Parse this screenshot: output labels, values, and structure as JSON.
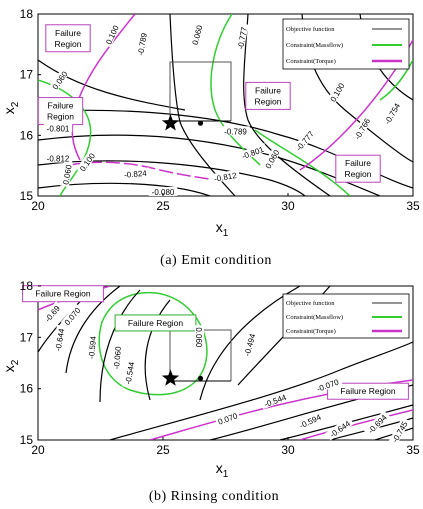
{
  "figure": {
    "caption_a": "(a)  Emit condition",
    "caption_b": "(b)  Rinsing condition"
  },
  "chart_data": [
    {
      "type": "contour",
      "title": "",
      "xlabel": "x",
      "xlabel_sub": "1",
      "ylabel": "x",
      "ylabel_sub": "2",
      "xlim": [
        20,
        35
      ],
      "ylim": [
        15,
        18
      ],
      "xticks": [
        "20",
        "25",
        "30",
        "35"
      ],
      "yticks": [
        "15",
        "16",
        "17",
        "18"
      ],
      "legend": {
        "placement": "top-right",
        "entries": [
          {
            "label": "Objective function",
            "color": "#555555"
          },
          {
            "label": "Constraint(Massflow)",
            "color": "#33cc33"
          },
          {
            "label": "Constraint(Torque)",
            "color": "#cc33cc"
          }
        ]
      },
      "regions": [
        {
          "label": "Failure\nRegion",
          "x": 21.2,
          "y": 17.6
        },
        {
          "label": "Failure\nRegion",
          "x": 20.9,
          "y": 16.4
        },
        {
          "label": "Failure\nRegion",
          "x": 29.2,
          "y": 16.65
        },
        {
          "label": "Failure\nRegion",
          "x": 32.8,
          "y": 15.45
        }
      ],
      "contour_labels": [
        {
          "text": "-0.789",
          "x": 24.2,
          "y": 17.5,
          "rot": -80
        },
        {
          "text": "-0.777",
          "x": 28.2,
          "y": 17.6,
          "rot": -80
        },
        {
          "text": "0.100",
          "x": 23.0,
          "y": 17.65,
          "rot": -65
        },
        {
          "text": "0.060",
          "x": 26.4,
          "y": 17.65,
          "rot": -75
        },
        {
          "text": "0.060",
          "x": 20.9,
          "y": 16.9,
          "rot": -55
        },
        {
          "text": "0.100",
          "x": 32.0,
          "y": 16.7,
          "rot": -60
        },
        {
          "text": "-0.754",
          "x": 34.2,
          "y": 16.35,
          "rot": -60
        },
        {
          "text": "-0.766",
          "x": 33.0,
          "y": 16.1,
          "rot": -60
        },
        {
          "text": "-0.777",
          "x": 30.7,
          "y": 15.9,
          "rot": -50
        },
        {
          "text": "-0.789",
          "x": 27.9,
          "y": 16.05,
          "rot": 0
        },
        {
          "text": "-0.801",
          "x": 28.6,
          "y": 15.7,
          "rot": -20
        },
        {
          "text": "0.060",
          "x": 29.4,
          "y": 15.6,
          "rot": -60
        },
        {
          "text": "-0.812",
          "x": 27.5,
          "y": 15.3,
          "rot": -10
        },
        {
          "text": "-0.824",
          "x": 23.9,
          "y": 15.35,
          "rot": -5
        },
        {
          "text": "-0.080",
          "x": 25.0,
          "y": 15.05,
          "rot": 0
        },
        {
          "text": "-0.801",
          "x": 20.8,
          "y": 16.1,
          "rot": 0
        },
        {
          "text": "-0.812",
          "x": 20.8,
          "y": 15.6,
          "rot": 0
        },
        {
          "text": "0.060",
          "x": 21.2,
          "y": 15.35,
          "rot": -80
        },
        {
          "text": "0.100",
          "x": 22.0,
          "y": 15.55,
          "rot": -55
        }
      ],
      "markers": [
        {
          "shape": "star",
          "x": 25.3,
          "y": 16.2
        },
        {
          "shape": "dot",
          "x": 26.5,
          "y": 16.2
        }
      ],
      "trust_box": {
        "x0": 25.0,
        "y0": 16.2,
        "x1": 28.2,
        "y1": 17.2
      }
    },
    {
      "type": "contour",
      "title": "",
      "xlabel": "x",
      "xlabel_sub": "1",
      "ylabel": "x",
      "ylabel_sub": "2",
      "xlim": [
        20,
        35
      ],
      "ylim": [
        15,
        18
      ],
      "xticks": [
        "20",
        "25",
        "30",
        "35"
      ],
      "yticks": [
        "15",
        "16",
        "17",
        "18"
      ],
      "legend": {
        "placement": "top-right",
        "entries": [
          {
            "label": "Objective function",
            "color": "#555555"
          },
          {
            "label": "Constraint(Massflow)",
            "color": "#33cc33"
          },
          {
            "label": "Constraint(Torque)",
            "color": "#cc33cc"
          }
        ]
      },
      "regions": [
        {
          "label": "Failure Region",
          "x": 21.0,
          "y": 17.85
        },
        {
          "label": "Failure Region",
          "x": 24.7,
          "y": 17.28
        },
        {
          "label": "Failure Region",
          "x": 33.2,
          "y": 15.95
        }
      ],
      "contour_labels": [
        {
          "text": "-0.69",
          "x": 20.6,
          "y": 17.45,
          "rot": -50
        },
        {
          "text": "0.070",
          "x": 21.4,
          "y": 17.4,
          "rot": -50
        },
        {
          "text": "-0.644",
          "x": 20.9,
          "y": 16.95,
          "rot": -80
        },
        {
          "text": "-0.594",
          "x": 22.2,
          "y": 16.8,
          "rot": -85
        },
        {
          "text": "-0.060",
          "x": 23.2,
          "y": 16.6,
          "rot": -85
        },
        {
          "text": "-0.544",
          "x": 23.7,
          "y": 16.3,
          "rot": -80
        },
        {
          "text": "0.060",
          "x": 26.4,
          "y": 17.0,
          "rot": 90
        },
        {
          "text": "-0.494",
          "x": 28.5,
          "y": 16.85,
          "rot": -75
        },
        {
          "text": "-0.070",
          "x": 31.6,
          "y": 16.05,
          "rot": -20
        },
        {
          "text": "-0.544",
          "x": 29.5,
          "y": 15.75,
          "rot": -20
        },
        {
          "text": "0.070",
          "x": 27.6,
          "y": 15.4,
          "rot": -20
        },
        {
          "text": "-0.594",
          "x": 30.9,
          "y": 15.35,
          "rot": -25
        },
        {
          "text": "-0.644",
          "x": 32.1,
          "y": 15.2,
          "rot": -35
        },
        {
          "text": "-0.694",
          "x": 33.6,
          "y": 15.3,
          "rot": -45
        },
        {
          "text": "-0.745",
          "x": 34.5,
          "y": 15.15,
          "rot": -60
        }
      ],
      "markers": [
        {
          "shape": "star",
          "x": 25.3,
          "y": 16.2
        },
        {
          "shape": "dot",
          "x": 26.5,
          "y": 16.2
        }
      ],
      "trust_box": {
        "x0": 25.0,
        "y0": 16.2,
        "x1": 28.2,
        "y1": 17.2
      }
    }
  ]
}
